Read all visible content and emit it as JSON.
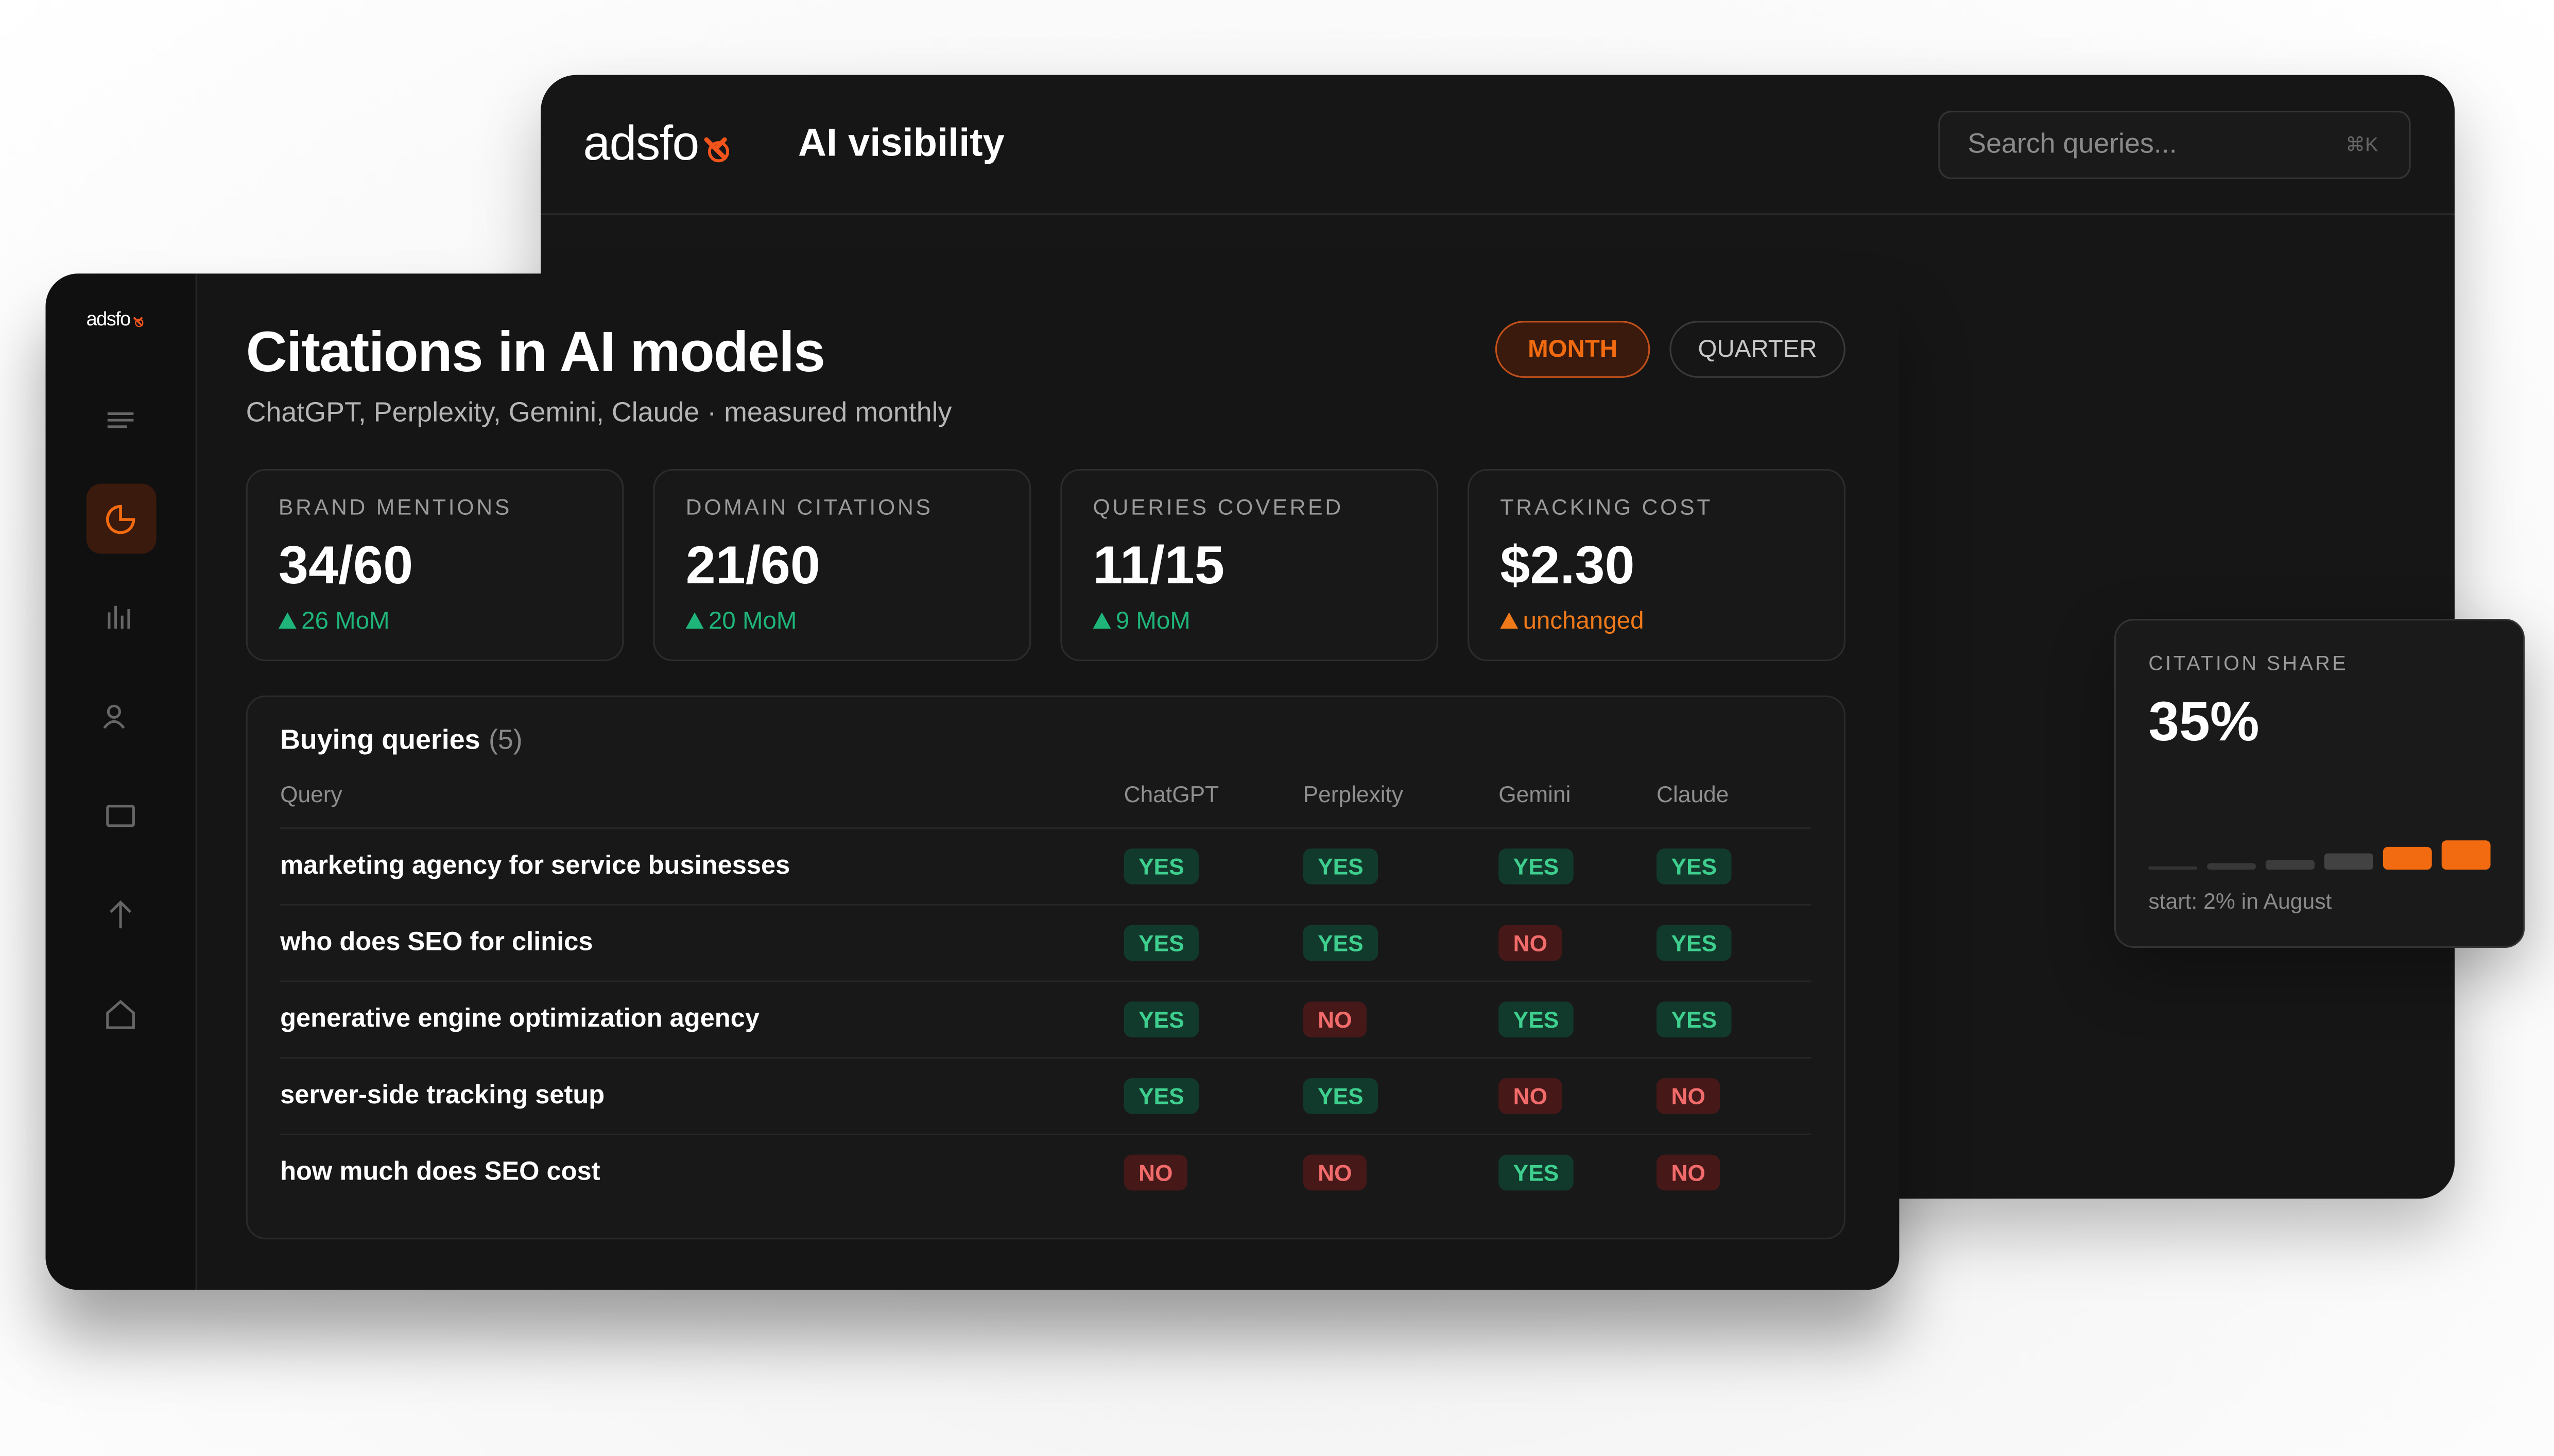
{
  "back_window": {
    "logo": "adsfo",
    "title": "AI visibility",
    "search": {
      "placeholder": "Search queries...",
      "shortcut": "⌘K"
    }
  },
  "citation_share": {
    "label": "CITATION SHARE",
    "value": "35%",
    "note": "start: 2% in August"
  },
  "sidebar": {
    "logo": "adsfo"
  },
  "header": {
    "title": "Citations in AI models",
    "subtitle": "ChatGPT, Perplexity, Gemini, Claude · measured monthly",
    "toggles": [
      {
        "label": "MONTH",
        "active": true
      },
      {
        "label": "QUARTER",
        "active": false
      }
    ]
  },
  "kpis": [
    {
      "label": "BRAND MENTIONS",
      "value": "34/60",
      "delta": "26 MoM",
      "color": "#1fb57a"
    },
    {
      "label": "DOMAIN CITATIONS",
      "value": "21/60",
      "delta": "20 MoM",
      "color": "#1fb57a"
    },
    {
      "label": "QUERIES COVERED",
      "value": "11/15",
      "delta": "9 MoM",
      "color": "#1fb57a"
    },
    {
      "label": "TRACKING COST",
      "value": "$2.30",
      "delta": "unchanged",
      "color": "#f07a1a"
    }
  ],
  "table": {
    "title": "Buying queries",
    "count": "(5)",
    "columns": [
      "Query",
      "ChatGPT",
      "Perplexity",
      "Gemini",
      "Claude"
    ],
    "rows": [
      [
        "marketing agency for service businesses",
        "YES",
        "YES",
        "YES",
        "YES"
      ],
      [
        "who does SEO for clinics",
        "YES",
        "YES",
        "NO",
        "YES"
      ],
      [
        "generative engine optimization agency",
        "YES",
        "NO",
        "YES",
        "YES"
      ],
      [
        "server-side tracking setup",
        "YES",
        "YES",
        "NO",
        "NO"
      ],
      [
        "how much does SEO cost",
        "NO",
        "NO",
        "YES",
        "NO"
      ]
    ]
  }
}
